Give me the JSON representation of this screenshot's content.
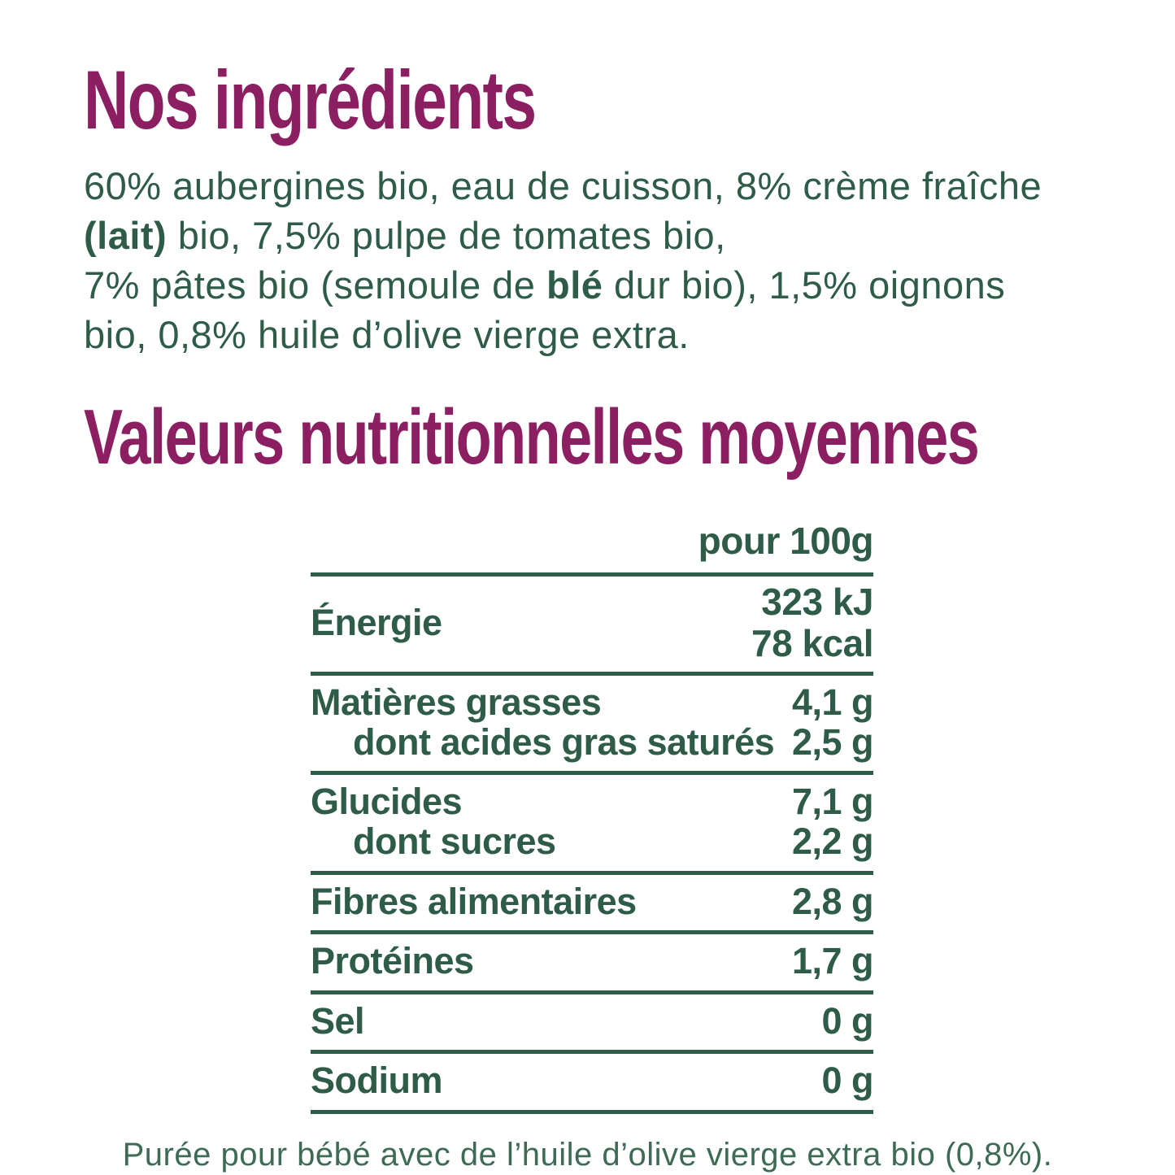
{
  "colors": {
    "purple": "#8c1f62",
    "green": "#2e5c48",
    "footer_green": "#3e6b55",
    "background": "#ffffff"
  },
  "ingredients": {
    "title": "Nos ingrédients",
    "lines": [
      [
        {
          "t": "60% aubergines bio, eau de cuisson, 8% crème fraîche"
        }
      ],
      [
        {
          "t": "(lait)",
          "b": true
        },
        {
          "t": " bio, 7,5% pulpe de tomates bio,"
        }
      ],
      [
        {
          "t": "7% pâtes bio (semoule de "
        },
        {
          "t": "blé",
          "b": true
        },
        {
          "t": " dur bio), 1,5% oignons"
        }
      ],
      [
        {
          "t": "bio, 0,8% huile d’olive vierge extra."
        }
      ]
    ]
  },
  "nutrition": {
    "title": "Valeurs nutritionnelles moyennes",
    "column_header": "pour 100g",
    "rows": [
      {
        "label": "Énergie",
        "values": [
          "323 kJ",
          "78 kcal"
        ]
      },
      {
        "label": "Matières grasses",
        "value": "4,1 g",
        "subs": [
          {
            "label": "dont acides gras saturés",
            "value": "2,5 g"
          }
        ]
      },
      {
        "label": "Glucides",
        "value": "7,1 g",
        "subs": [
          {
            "label": "dont sucres",
            "value": "2,2 g"
          }
        ]
      },
      {
        "label": "Fibres alimentaires",
        "value": "2,8 g"
      },
      {
        "label": "Protéines",
        "value": "1,7 g"
      },
      {
        "label": "Sel",
        "value": "0 g"
      },
      {
        "label": "Sodium",
        "value": "0 g"
      }
    ]
  },
  "footer": {
    "note": "Purée pour bébé avec de l’huile d’olive vierge extra bio (0,8%)."
  }
}
